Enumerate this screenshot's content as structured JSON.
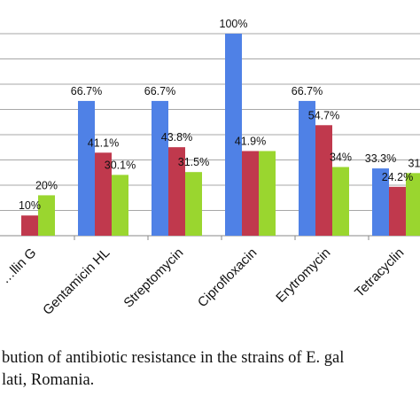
{
  "chart_data": {
    "type": "bar",
    "title": "",
    "xlabel": "",
    "ylabel": "",
    "ylim": [
      0,
      100
    ],
    "grid": true,
    "categories": [
      "…llin G",
      "Gentamicin HL",
      "Streptomycin",
      "Ciprofloxacin",
      "Erytromycin",
      "Tetracyclin"
    ],
    "series": [
      {
        "color": "#4f81e6",
        "values": [
          null,
          66.7,
          66.7,
          100,
          66.7,
          33.3
        ],
        "labels": [
          "",
          "66.7%",
          "66.7%",
          "100%",
          "66.7%",
          "33.3%"
        ]
      },
      {
        "color": "#c0394d",
        "values": [
          10,
          41.1,
          43.8,
          41.9,
          54.7,
          24.2
        ],
        "labels": [
          "10%",
          "41.1%",
          "43.8%",
          "41.9%",
          "54.7%",
          "24.2%"
        ]
      },
      {
        "color": "#9ad62f",
        "values": [
          20,
          30.1,
          31.5,
          41.9,
          34,
          31
        ],
        "labels": [
          "20%",
          "30.1%",
          "31.5%",
          "",
          "34%",
          "31"
        ]
      }
    ]
  },
  "caption": {
    "line1": "bution of antibiotic resistance in the strains of E. gal",
    "line2": "lati, Romania."
  }
}
